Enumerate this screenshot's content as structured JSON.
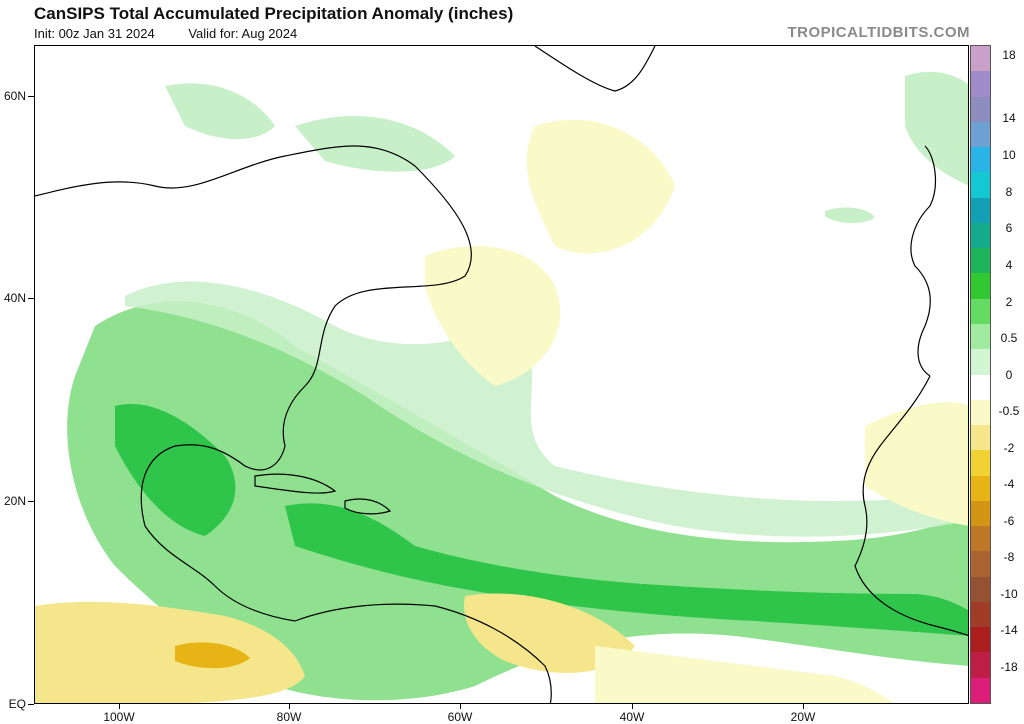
{
  "header": {
    "title": "CanSIPS Total Accumulated Precipitation Anomaly (inches)",
    "init": "Init: 00z Jan 31 2024",
    "valid": "Valid for: Aug 2024",
    "brand": "TROPICALTIDBITS.COM"
  },
  "map": {
    "lat_labels": [
      "60N",
      "40N",
      "20N",
      "EQ"
    ],
    "lon_labels": [
      "100W",
      "80W",
      "60W",
      "40W",
      "20W"
    ],
    "lon_range": [
      -110,
      0
    ],
    "lat_range": [
      0,
      65
    ]
  },
  "colorbar": {
    "labels": [
      "18",
      "14",
      "10",
      "8",
      "6",
      "4",
      "2",
      "0.5",
      "0",
      "-0.5",
      "-2",
      "-4",
      "-6",
      "-8",
      "-10",
      "-14",
      "-18"
    ],
    "colors": [
      "#c8a0c8",
      "#a08cc8",
      "#8c8cbe",
      "#6ea0d2",
      "#28b4e6",
      "#14c8d2",
      "#14a0b4",
      "#14aa8c",
      "#1eb45a",
      "#32c832",
      "#64dc64",
      "#a0eba0",
      "#d2f5d2",
      "#ffffff",
      "#fafac8",
      "#f5e68c",
      "#f0d232",
      "#e6b414",
      "#d29614",
      "#be7828",
      "#aa6432",
      "#965032",
      "#a03c28",
      "#aa1e1e",
      "#be1e46",
      "#dc1e78"
    ]
  }
}
